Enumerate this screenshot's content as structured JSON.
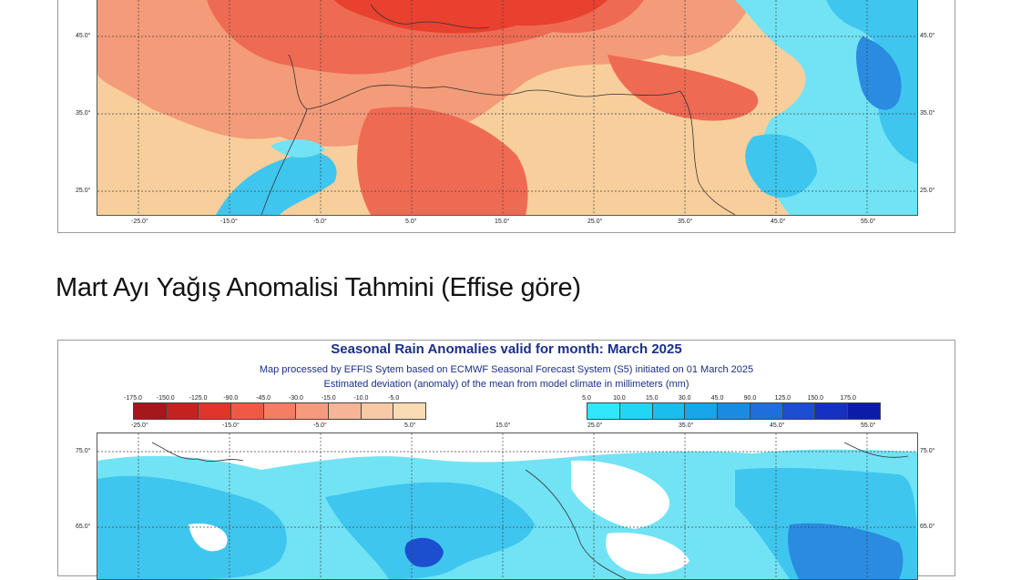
{
  "top_map": {
    "lon_ticks": [
      "-25.0°",
      "-15.0°",
      "-5.0°",
      "5.0°",
      "15.0°",
      "25.0°",
      "35.0°",
      "45.0°",
      "55.0°"
    ],
    "lat_ticks": [
      "45.0°",
      "35.0°",
      "25.0°"
    ],
    "colors": {
      "warm_light": "#f8cf9c",
      "warm_mid": "#f49b79",
      "warm_strong": "#ef6a52",
      "warm_deep": "#e8412f",
      "cool_light": "#72e3f5",
      "cool_mid": "#3fc6ef",
      "cool_deep": "#2a8be0"
    }
  },
  "section_heading": "Mart Ayı Yağış Anomalisi Tahmini (Effise göre)",
  "bottom_map": {
    "title": "Seasonal Rain Anomalies valid for month: March 2025",
    "subtitle_1": "Map processed by EFFIS Sytem based on ECMWF Seasonal Forecast System (S5) initiated on 01 March 2025",
    "subtitle_2": "Estimated deviation (anomaly) of the mean from model climate in millimeters (mm)",
    "legend_negative": {
      "labels": [
        "-175.0",
        "-150.0",
        "-125.0",
        "-90.0",
        "-45.0",
        "-30.0",
        "-15.0",
        "-10.0",
        "-5.0"
      ],
      "colors": [
        "#a4171a",
        "#c4221f",
        "#e0352b",
        "#ef5a45",
        "#f47d62",
        "#f69a7d",
        "#f7b496",
        "#f8c9a6",
        "#f9dcb3"
      ]
    },
    "legend_positive": {
      "labels": [
        "5.0",
        "10.0",
        "15.0",
        "30.0",
        "45.0",
        "90.0",
        "125.0",
        "150.0",
        "175.0"
      ],
      "colors": [
        "#31e6ff",
        "#22d5f4",
        "#19bdee",
        "#17a6e8",
        "#1a8be1",
        "#1e6fda",
        "#1c4ed0",
        "#1431bf",
        "#0c1ca8"
      ]
    },
    "lon_ticks": [
      "-25.0°",
      "-15.0°",
      "-5.0°",
      "5.0°",
      "15.0°",
      "25.0°",
      "35.0°",
      "45.0°",
      "55.0°"
    ],
    "lat_ticks": [
      "75.0°",
      "65.0°"
    ]
  }
}
